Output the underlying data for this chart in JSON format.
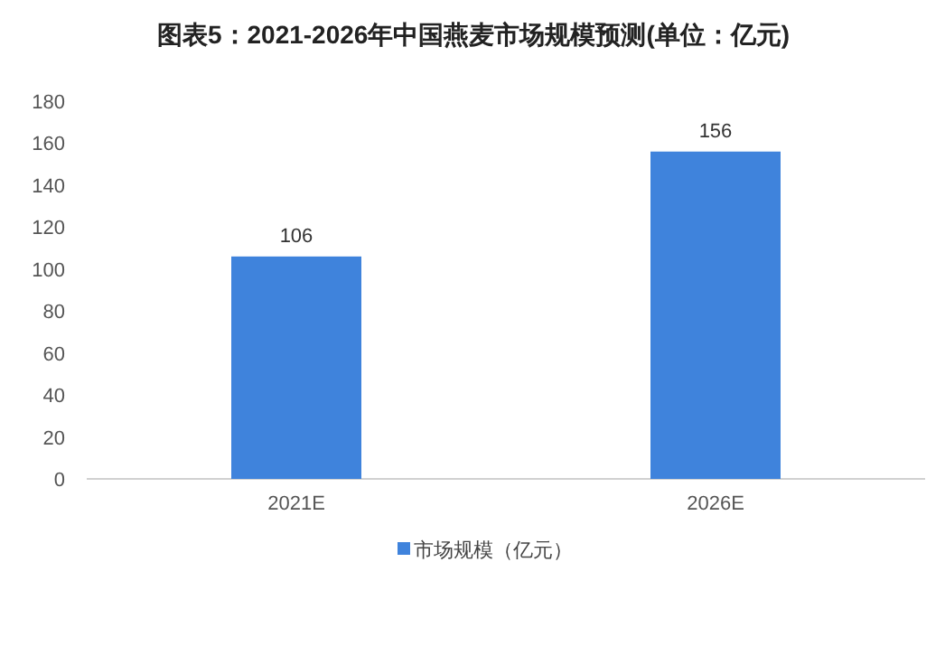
{
  "chart_data": {
    "type": "bar",
    "title": "图表5：2021-2026年中国燕麦市场规模预测(单位：亿元)",
    "categories": [
      "2021E",
      "2026E"
    ],
    "series": [
      {
        "name": "市场规模（亿元）",
        "color": "#3f83dc",
        "values": [
          106,
          156
        ]
      }
    ],
    "ylim": [
      0,
      180
    ],
    "yticks": [
      0,
      20,
      40,
      60,
      80,
      100,
      120,
      140,
      160,
      180
    ],
    "data_labels": true,
    "legend": "bottom"
  }
}
